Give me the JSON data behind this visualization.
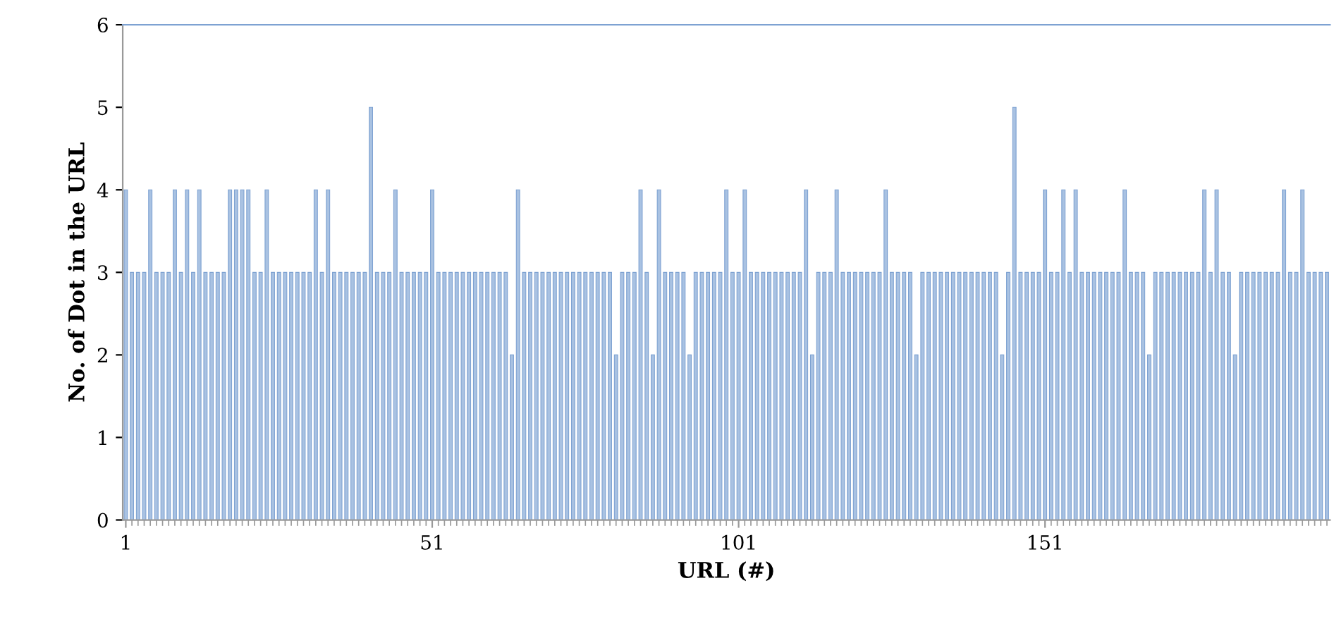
{
  "chart_data": {
    "type": "bar",
    "xlabel": "URL (#)",
    "ylabel": "No. of Dot in the URL",
    "categories": [
      "1",
      null,
      null,
      null,
      null,
      null,
      null,
      null,
      null,
      null,
      null,
      null,
      null,
      null,
      null,
      null,
      null,
      null,
      null,
      null,
      null,
      null,
      null,
      null,
      null,
      null,
      null,
      null,
      null,
      null,
      null,
      null,
      null,
      null,
      null,
      null,
      null,
      null,
      null,
      null,
      null,
      null,
      null,
      null,
      null,
      null,
      null,
      null,
      null,
      null,
      "51",
      null,
      null,
      null,
      null,
      null,
      null,
      null,
      null,
      null,
      null,
      null,
      null,
      null,
      null,
      null,
      null,
      null,
      null,
      null,
      null,
      null,
      null,
      null,
      null,
      null,
      null,
      null,
      null,
      null,
      null,
      null,
      null,
      null,
      null,
      null,
      null,
      null,
      null,
      null,
      null,
      null,
      null,
      null,
      null,
      null,
      null,
      null,
      null,
      null,
      "101",
      null,
      null,
      null,
      null,
      null,
      null,
      null,
      null,
      null,
      null,
      null,
      null,
      null,
      null,
      null,
      null,
      null,
      null,
      null,
      null,
      null,
      null,
      null,
      null,
      null,
      null,
      null,
      null,
      null,
      null,
      null,
      null,
      null,
      null,
      null,
      null,
      null,
      null,
      null,
      null,
      null,
      null,
      null,
      null,
      null,
      null,
      null,
      null,
      null,
      "151",
      null,
      null,
      null,
      null,
      null,
      null,
      null,
      null,
      null,
      null,
      null,
      null,
      null,
      null,
      null,
      null,
      null,
      null,
      null,
      null,
      null,
      null,
      null,
      null,
      null,
      null,
      null,
      null,
      null,
      null,
      null,
      null,
      null,
      null,
      null,
      null,
      null,
      null,
      null,
      null,
      null,
      null,
      null,
      null,
      null,
      null
    ],
    "values": [
      4,
      3,
      3,
      3,
      4,
      3,
      3,
      3,
      4,
      3,
      4,
      3,
      4,
      3,
      3,
      3,
      3,
      4,
      4,
      4,
      4,
      3,
      3,
      4,
      3,
      3,
      3,
      3,
      3,
      3,
      3,
      4,
      3,
      4,
      3,
      3,
      3,
      3,
      3,
      3,
      5,
      3,
      3,
      3,
      4,
      3,
      3,
      3,
      3,
      3,
      4,
      3,
      3,
      3,
      3,
      3,
      3,
      3,
      3,
      3,
      3,
      3,
      3,
      2,
      4,
      3,
      3,
      3,
      3,
      3,
      3,
      3,
      3,
      3,
      3,
      3,
      3,
      3,
      3,
      3,
      2,
      3,
      3,
      3,
      4,
      3,
      2,
      4,
      3,
      3,
      3,
      3,
      2,
      3,
      3,
      3,
      3,
      3,
      4,
      3,
      3,
      4,
      3,
      3,
      3,
      3,
      3,
      3,
      3,
      3,
      3,
      4,
      2,
      3,
      3,
      3,
      4,
      3,
      3,
      3,
      3,
      3,
      3,
      3,
      4,
      3,
      3,
      3,
      3,
      2,
      3,
      3,
      3,
      3,
      3,
      3,
      3,
      3,
      3,
      3,
      3,
      3,
      3,
      2,
      3,
      5,
      3,
      3,
      3,
      3,
      4,
      3,
      3,
      4,
      3,
      4,
      3,
      3,
      3,
      3,
      3,
      3,
      3,
      4,
      3,
      3,
      3,
      2,
      3,
      3,
      3,
      3,
      3,
      3,
      3,
      3,
      4,
      3,
      4,
      3,
      3,
      2,
      3,
      3,
      3,
      3,
      3,
      3,
      3,
      4,
      3,
      3,
      4,
      3,
      3,
      3,
      3
    ],
    "color": "#a9c2e2",
    "ylim": [
      0,
      6
    ],
    "yticks": [
      0,
      1,
      2,
      3,
      4,
      5,
      6
    ],
    "grid": false,
    "legend": false
  }
}
